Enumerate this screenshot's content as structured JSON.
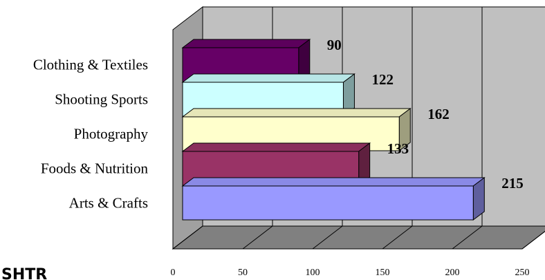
{
  "chart_data": {
    "type": "bar",
    "orientation": "horizontal",
    "style": "3d",
    "categories": [
      "Arts & Crafts",
      "Foods & Nutrition",
      "Photography",
      "Shooting Sports",
      "Clothing & Textiles"
    ],
    "values": [
      215,
      133,
      162,
      122,
      90
    ],
    "value_labels": [
      "215",
      "133",
      "162",
      "122",
      "90"
    ],
    "colors": [
      "#9999ff",
      "#993366",
      "#ffffcc",
      "#ccffff",
      "#660066"
    ],
    "xlim": [
      0,
      250
    ],
    "xticks": [
      0,
      50,
      100,
      150,
      200,
      250
    ],
    "xtick_labels": [
      "0",
      "50",
      "100",
      "150",
      "200",
      "250"
    ],
    "grid": true,
    "wall_color": "#c0c0c0",
    "title": "",
    "xlabel": "",
    "ylabel": ""
  },
  "corner_text": "SHTR"
}
